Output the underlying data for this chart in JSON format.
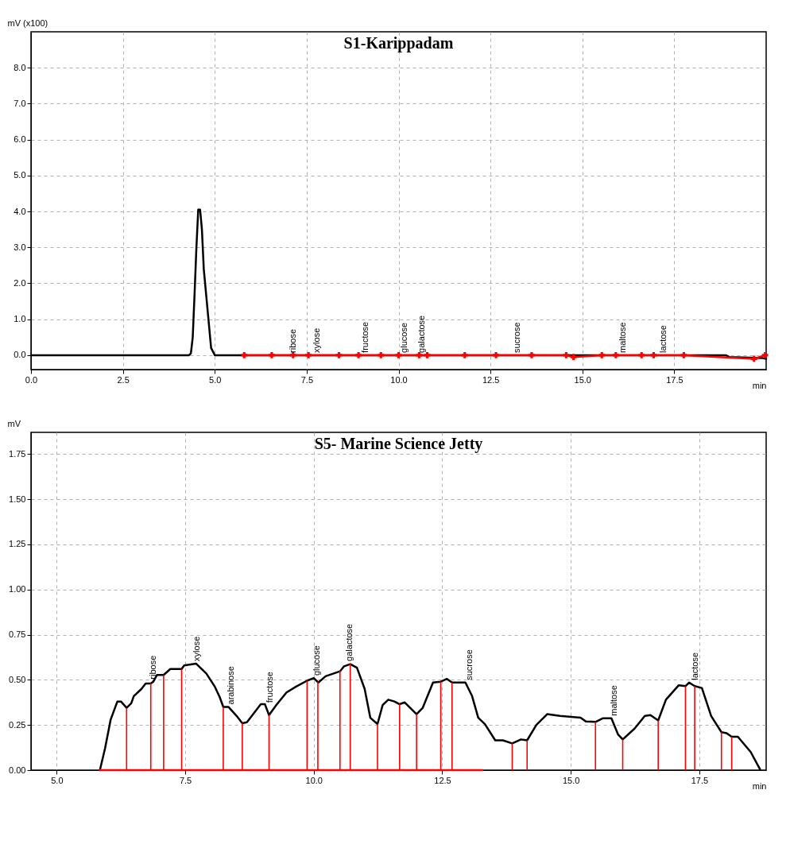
{
  "chart_data": [
    {
      "type": "line",
      "title": "S1-Karippadam",
      "ylabel": "mV  (x100)",
      "xlabel": "min",
      "grid": true,
      "xlim": [
        0,
        20
      ],
      "ylim": [
        -0.4,
        9.0
      ],
      "xticks": [
        {
          "value": 0,
          "label": "0.0"
        },
        2.5,
        {
          "value": 5,
          "label": "5.0"
        },
        7.5,
        {
          "value": 10,
          "label": "10.0"
        },
        12.5,
        {
          "value": 15,
          "label": "15.0"
        },
        17.5
      ],
      "yticks": [
        {
          "value": 0,
          "label": "0.0"
        },
        {
          "value": 1,
          "label": "1.0"
        },
        {
          "value": 2,
          "label": "2.0"
        },
        {
          "value": 3,
          "label": "3.0"
        },
        {
          "value": 4,
          "label": "4.0"
        },
        {
          "value": 5,
          "label": "5.0"
        },
        {
          "value": 6,
          "label": "6.0"
        },
        {
          "value": 7,
          "label": "7.0"
        },
        {
          "value": 8,
          "label": "8.0"
        }
      ],
      "series": [
        {
          "type": "line",
          "color": "#000000",
          "x": [
            0,
            4.3,
            4.35,
            4.4,
            4.45,
            4.5,
            4.55,
            4.6,
            4.65,
            4.7,
            4.8,
            4.9,
            5.0,
            17.8,
            18.9,
            19.0,
            19.9,
            20.0
          ],
          "values": [
            0,
            0,
            0.05,
            0.5,
            1.7,
            3.0,
            4.05,
            4.05,
            3.5,
            2.4,
            1.3,
            0.2,
            0,
            0,
            0,
            -0.05,
            -0.08,
            -0.1
          ]
        },
        {
          "type": "line",
          "color": "#ff0000",
          "marker": "cross",
          "x": [
            5.8,
            6.55,
            7.13,
            7.55,
            8.38,
            8.91,
            9.52,
            10.0,
            10.56,
            10.78,
            11.8,
            12.65,
            13.62,
            14.56,
            14.76,
            15.53,
            15.91,
            16.61,
            16.94,
            17.76,
            19.67,
            19.97
          ],
          "values": [
            0,
            0,
            0,
            0,
            0,
            0,
            0,
            0,
            0,
            0,
            0,
            0,
            0,
            0,
            -0.05,
            0,
            0,
            0,
            0,
            0,
            -0.1,
            0
          ]
        }
      ],
      "annotations": [
        {
          "text": "ribose",
          "x": 7.13,
          "y": 0
        },
        {
          "text": "xylose",
          "x": 7.79,
          "y": 0
        },
        {
          "text": "fructose",
          "x": 9.1,
          "y": 0
        },
        {
          "text": "glucose",
          "x": 10.17,
          "y": 0
        },
        {
          "text": "galactose",
          "x": 10.63,
          "y": 0
        },
        {
          "text": "sucrose",
          "x": 13.23,
          "y": 0
        },
        {
          "text": "maltose",
          "x": 16.1,
          "y": 0
        },
        {
          "text": "lactose",
          "x": 17.2,
          "y": 0
        }
      ]
    },
    {
      "type": "line",
      "title": "S5- Marine Science Jetty",
      "ylabel": "mV",
      "xlabel": "min",
      "grid": true,
      "xlim": [
        4.5,
        18.8
      ],
      "ylim": [
        0,
        1.87
      ],
      "xticks": [
        {
          "value": 5,
          "label": "5.0"
        },
        7.5,
        {
          "value": 10,
          "label": "10.0"
        },
        12.5,
        {
          "value": 15,
          "label": "15.0"
        },
        17.5
      ],
      "yticks": [
        {
          "value": 0,
          "label": "0.00"
        },
        0.25,
        {
          "value": 0.5,
          "label": "0.50"
        },
        0.75,
        {
          "value": 1,
          "label": "1.00"
        },
        1.25,
        {
          "value": 1.5,
          "label": "1.50"
        },
        1.75
      ],
      "series": [
        {
          "type": "line",
          "color": "#000000",
          "x": [
            5.84,
            5.94,
            6.05,
            6.18,
            6.25,
            6.36,
            6.45,
            6.5,
            6.65,
            6.73,
            6.83,
            6.88,
            6.95,
            7.08,
            7.21,
            7.43,
            7.48,
            7.71,
            7.91,
            8.07,
            8.17,
            8.24,
            8.34,
            8.5,
            8.61,
            8.7,
            8.97,
            9.05,
            9.13,
            9.27,
            9.47,
            9.67,
            9.87,
            10.0,
            10.09,
            10.23,
            10.51,
            10.59,
            10.71,
            10.84,
            10.99,
            11.1,
            11.24,
            11.34,
            11.45,
            11.57,
            11.67,
            11.77,
            12.0,
            12.12,
            12.32,
            12.47,
            12.59,
            12.69,
            12.95,
            13.08,
            13.2,
            13.33,
            13.53,
            13.68,
            13.86,
            14.03,
            14.15,
            14.33,
            14.54,
            14.79,
            15.19,
            15.29,
            15.48,
            15.62,
            15.79,
            15.92,
            16.01,
            16.24,
            16.44,
            16.55,
            16.7,
            16.85,
            17.1,
            17.23,
            17.3,
            17.41,
            17.55,
            17.73,
            17.93,
            18.03,
            18.13,
            18.25,
            18.5,
            18.68
          ],
          "values": [
            0,
            0.12,
            0.28,
            0.38,
            0.38,
            0.345,
            0.37,
            0.41,
            0.45,
            0.48,
            0.48,
            0.49,
            0.527,
            0.527,
            0.56,
            0.56,
            0.58,
            0.59,
            0.535,
            0.465,
            0.405,
            0.35,
            0.35,
            0.3,
            0.26,
            0.265,
            0.365,
            0.365,
            0.305,
            0.36,
            0.43,
            0.465,
            0.495,
            0.51,
            0.485,
            0.52,
            0.547,
            0.575,
            0.587,
            0.567,
            0.45,
            0.29,
            0.255,
            0.36,
            0.39,
            0.38,
            0.365,
            0.375,
            0.31,
            0.345,
            0.485,
            0.49,
            0.505,
            0.485,
            0.485,
            0.41,
            0.29,
            0.255,
            0.165,
            0.165,
            0.148,
            0.17,
            0.165,
            0.25,
            0.31,
            0.3,
            0.29,
            0.27,
            0.267,
            0.287,
            0.287,
            0.197,
            0.17,
            0.23,
            0.3,
            0.305,
            0.275,
            0.39,
            0.47,
            0.465,
            0.485,
            0.465,
            0.455,
            0.3,
            0.21,
            0.205,
            0.185,
            0.185,
            0.1,
            0.005
          ]
        },
        {
          "type": "bar",
          "color": "#ff0000",
          "x": [
            6.36,
            6.83,
            7.08,
            7.43,
            8.24,
            8.61,
            9.13,
            9.87,
            10.08,
            10.51,
            10.71,
            11.24,
            11.67,
            12.0,
            12.47,
            12.69,
            13.86,
            14.15,
            15.48,
            16.01,
            16.7,
            17.23,
            17.41,
            17.93,
            18.13
          ],
          "values": [
            0.345,
            0.48,
            0.527,
            0.56,
            0.35,
            0.26,
            0.305,
            0.495,
            0.49,
            0.55,
            0.59,
            0.255,
            0.365,
            0.31,
            0.49,
            0.485,
            0.148,
            0.165,
            0.267,
            0.17,
            0.275,
            0.465,
            0.465,
            0.21,
            0.185
          ]
        },
        {
          "type": "line",
          "color": "#ff0000",
          "x": [
            5.84,
            13.28
          ],
          "values": [
            0,
            0
          ]
        }
      ],
      "annotations": [
        {
          "text": "ribose",
          "x": 6.88,
          "y": 0.49
        },
        {
          "text": "xylose",
          "x": 7.73,
          "y": 0.59
        },
        {
          "text": "arabinose",
          "x": 8.39,
          "y": 0.35
        },
        {
          "text": "fructose",
          "x": 9.15,
          "y": 0.36
        },
        {
          "text": "glucose",
          "x": 10.06,
          "y": 0.51
        },
        {
          "text": "galactose",
          "x": 10.7,
          "y": 0.59
        },
        {
          "text": "sucrose",
          "x": 13.03,
          "y": 0.485
        },
        {
          "text": "maltose",
          "x": 15.84,
          "y": 0.287
        },
        {
          "text": "lactose",
          "x": 17.42,
          "y": 0.485
        }
      ]
    }
  ]
}
